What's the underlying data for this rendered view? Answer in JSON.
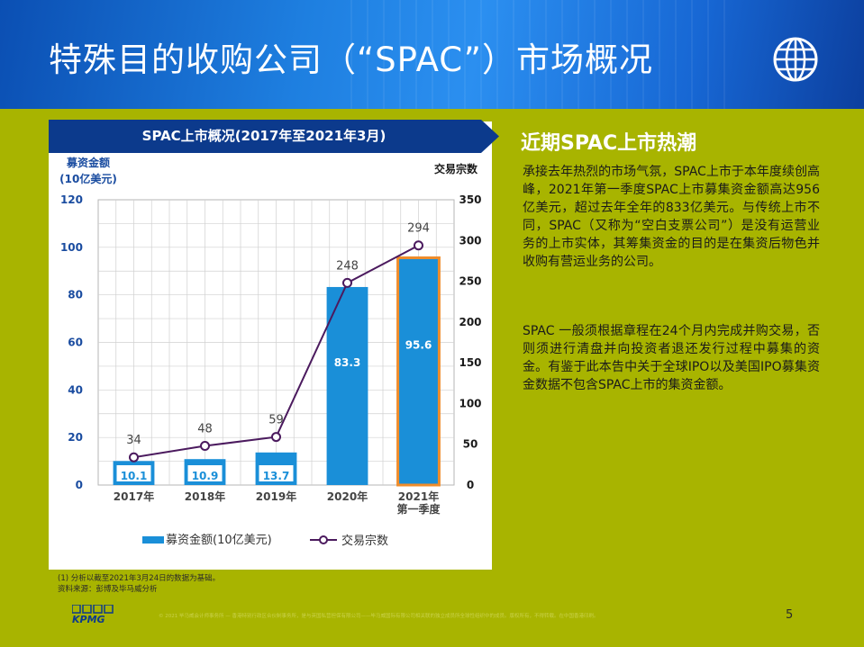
{
  "slide": {
    "title": "特殊目的收购公司（“SPAC”）市场概况",
    "page_number": "5",
    "logo": "KPMG",
    "copyright": "© 2021 毕马威会计师事务所 — 香港特别行政区合伙制事务所，是与英国私营担保有限公司——毕马威国际有限公司相关联的独立成员所全球性组织中的成员。版权所有，不得转载。在中国香港印刷。"
  },
  "chart_panel": {
    "banner": "SPAC上市概况(2017年至2021年3月)",
    "left_axis_title_line1": "募资金额",
    "left_axis_title_line2": "(10亿美元)",
    "right_axis_title": "交易宗数",
    "footnote_line1": "(1) 分析以截至2021年3月24日的数据为基础。",
    "footnote_line2": "资料来源：彭博及毕马威分析"
  },
  "chart_data": {
    "type": "bar",
    "categories": [
      "2017年",
      "2018年",
      "2019年",
      "2020年",
      "2021年\n第一季度"
    ],
    "series": [
      {
        "name": "募资金额(10亿美元)",
        "type": "bar",
        "axis": "left",
        "values": [
          10.1,
          10.9,
          13.7,
          83.3,
          95.6
        ]
      },
      {
        "name": "交易宗数",
        "type": "line",
        "axis": "right",
        "values": [
          34,
          48,
          59,
          248,
          294
        ]
      }
    ],
    "left_axis": {
      "ylim": [
        0,
        120
      ],
      "ticks": [
        0,
        20,
        40,
        60,
        80,
        100,
        120
      ]
    },
    "right_axis": {
      "ylim": [
        0,
        350
      ],
      "ticks": [
        0,
        50,
        100,
        150,
        200,
        250,
        300,
        350
      ]
    },
    "highlight_category_index": 4,
    "grid": true,
    "legend_position": "bottom",
    "colors": {
      "bar": "#1a8fd8",
      "highlight_border": "#f08c2a",
      "line": "#4b1a5e",
      "axis_text": "#1a4ca0",
      "grid": "#d0d0d0"
    }
  },
  "right_section": {
    "heading": "近期SPAC上市热潮",
    "paragraph1": "承接去年热烈的市场气氛，SPAC上市于本年度续创高峰，2021年第一季度SPAC上市募集资金额高达956亿美元，超过去年全年的833亿美元。与传统上市不同，SPAC（又称为“空白支票公司”）是没有运营业务的上市实体，其筹集资金的目的是在集资后物色并收购有营运业务的公司。",
    "paragraph2": "SPAC 一般须根据章程在24个月内完成并购交易，否则须进行清盘并向投资者退还发行过程中募集的资金。有鉴于此本告中关于全球IPO以及美国IPO募集资金数据不包含SPAC上市的集资金额。"
  },
  "colors": {
    "background": "#a8b400",
    "header": "#1e7fe0",
    "banner": "#0c3a8c"
  }
}
